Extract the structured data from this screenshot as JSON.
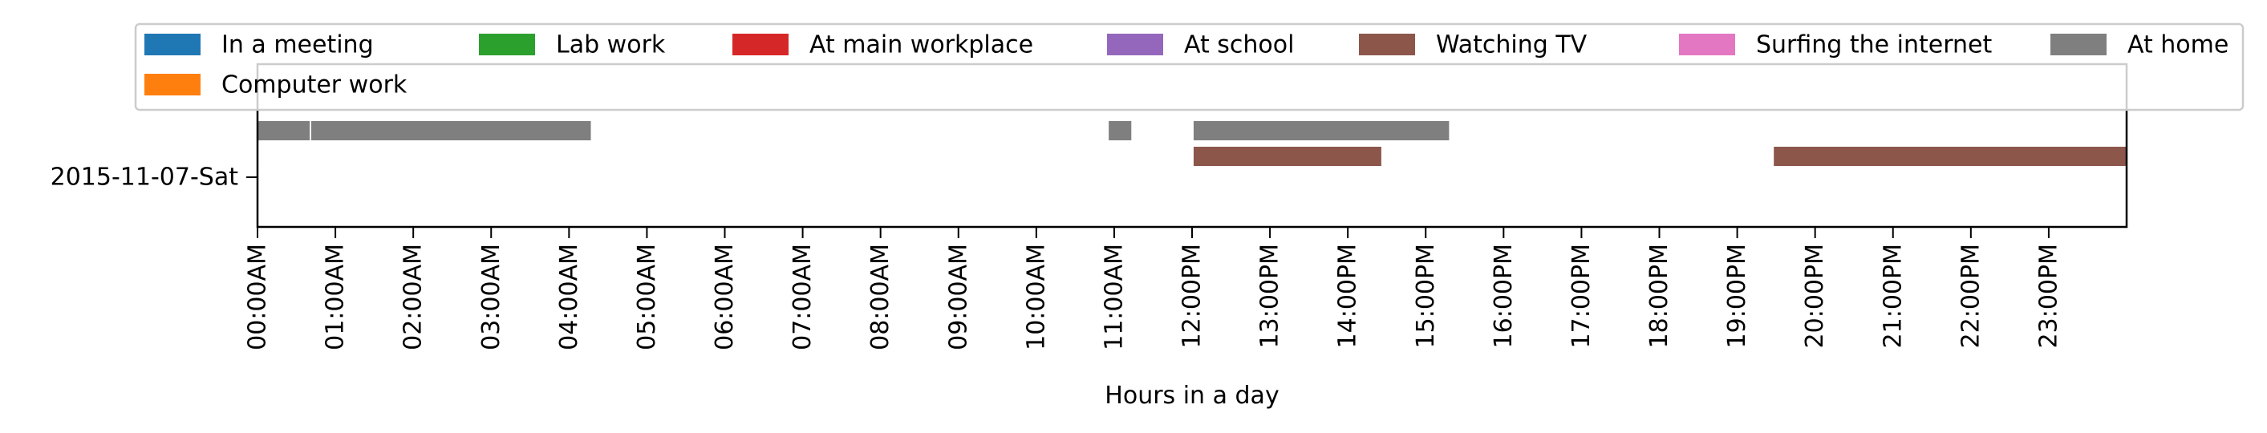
{
  "chart_data": {
    "type": "bar",
    "orientation": "horizontal-timeline",
    "title": "",
    "xlabel": "Hours in a day",
    "ylabel": "",
    "xlim": [
      0,
      24
    ],
    "x_tick_labels": [
      "00:00AM",
      "01:00AM",
      "02:00AM",
      "03:00AM",
      "04:00AM",
      "05:00AM",
      "06:00AM",
      "07:00AM",
      "08:00AM",
      "09:00AM",
      "10:00AM",
      "11:00AM",
      "12:00PM",
      "13:00PM",
      "14:00PM",
      "15:00PM",
      "16:00PM",
      "17:00PM",
      "18:00PM",
      "19:00PM",
      "20:00PM",
      "21:00PM",
      "22:00PM",
      "23:00PM"
    ],
    "categories": [
      "2015-11-07-Sat"
    ],
    "grid": false,
    "legend_position": "top",
    "legend": [
      {
        "label": "In a meeting",
        "color": "#1f77b4"
      },
      {
        "label": "Lab work",
        "color": "#2ca02c"
      },
      {
        "label": "At main workplace",
        "color": "#d62728"
      },
      {
        "label": "At school",
        "color": "#9467bd"
      },
      {
        "label": "Watching TV",
        "color": "#8c564b"
      },
      {
        "label": "Surfing the internet",
        "color": "#e377c2"
      },
      {
        "label": "At home",
        "color": "#7f7f7f"
      },
      {
        "label": "Computer work",
        "color": "#ff7f0e"
      }
    ],
    "series": [
      {
        "name": "At home",
        "color": "#7f7f7f",
        "lane": "upper",
        "intervals": [
          [
            0.0,
            0.67
          ],
          [
            0.69,
            4.28
          ],
          [
            10.93,
            11.22
          ],
          [
            12.02,
            15.3
          ]
        ]
      },
      {
        "name": "Watching TV",
        "color": "#8c564b",
        "lane": "lower",
        "intervals": [
          [
            12.02,
            14.43
          ],
          [
            19.47,
            24.0
          ]
        ]
      }
    ]
  }
}
